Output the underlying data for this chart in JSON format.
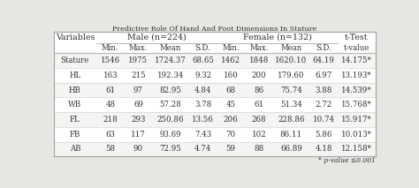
{
  "title": "Predictive Role Of Hand And Foot Dimensions In Stature",
  "male_header": "Male (n=224)",
  "female_header": "Female (n=132)",
  "ttest_header": "t-Test",
  "sub_headers": [
    "Min.",
    "Max.",
    "Mean",
    "S.D.",
    "Min.",
    "Max.",
    "Mean",
    "S.D.",
    "t-value"
  ],
  "row_label": "Variables",
  "footnote": "* p-value ≤0.001",
  "rows": [
    {
      "var": "Stature",
      "male": [
        "1546",
        "1975",
        "1724.37",
        "68.65"
      ],
      "female": [
        "1462",
        "1848",
        "1620.10",
        "64.19"
      ],
      "t": "14.175*"
    },
    {
      "var": "HL",
      "male": [
        "163",
        "215",
        "192.34",
        "9.32"
      ],
      "female": [
        "160",
        "200",
        "179.60",
        "6.97"
      ],
      "t": "13.193*"
    },
    {
      "var": "HB",
      "male": [
        "61",
        "97",
        "82.95",
        "4.84"
      ],
      "female": [
        "68",
        "86",
        "75.74",
        "3.88"
      ],
      "t": "14.539*"
    },
    {
      "var": "WB",
      "male": [
        "48",
        "69",
        "57.28",
        "3.78"
      ],
      "female": [
        "45",
        "61",
        "51.34",
        "2.72"
      ],
      "t": "15.768*"
    },
    {
      "var": "FL",
      "male": [
        "218",
        "293",
        "250.86",
        "13.56"
      ],
      "female": [
        "206",
        "268",
        "228.86",
        "10.74"
      ],
      "t": "15.917*"
    },
    {
      "var": "FB",
      "male": [
        "63",
        "117",
        "93.69",
        "7.43"
      ],
      "female": [
        "70",
        "102",
        "86.11",
        "5.86"
      ],
      "t": "10.013*"
    },
    {
      "var": "AB",
      "male": [
        "58",
        "90",
        "72.95",
        "4.74"
      ],
      "female": [
        "59",
        "88",
        "66.89",
        "4.18"
      ],
      "t": "12.158*"
    }
  ],
  "bg_color": "#e8e6e3",
  "table_bg": "#ffffff",
  "border_color": "#aaaaaa",
  "text_color": "#333333",
  "font_size": 6.2,
  "header_font_size": 6.8,
  "title_font_size": 5.8,
  "footnote_font_size": 5.5
}
